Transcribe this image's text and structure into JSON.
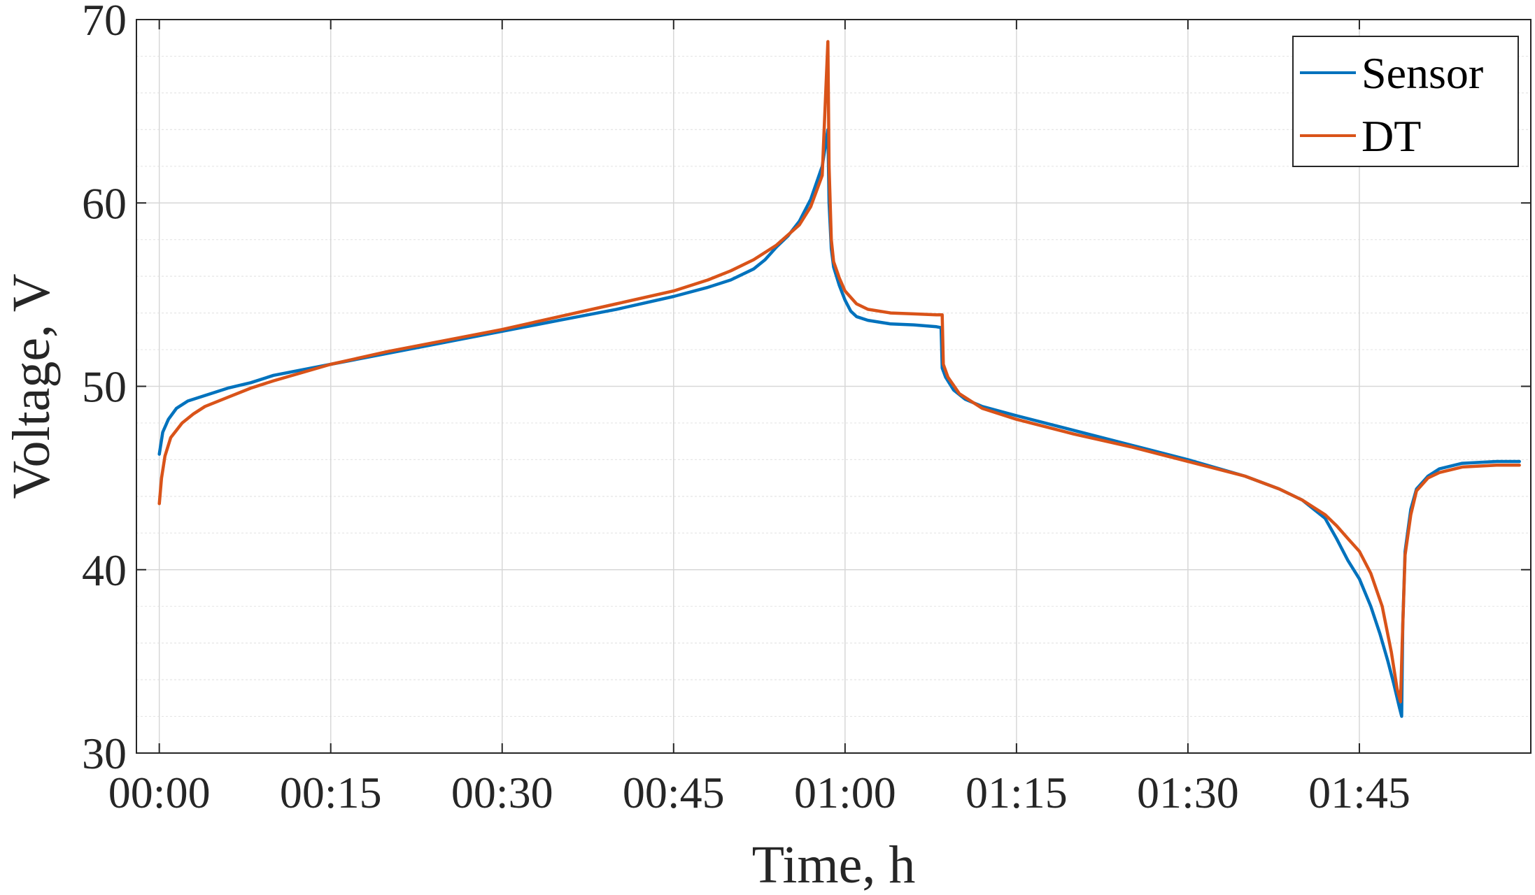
{
  "chart_data": {
    "type": "line",
    "title": "",
    "xlabel": "Time, h",
    "ylabel": "Voltage, V",
    "xlim_minutes": [
      -2,
      120
    ],
    "ylim": [
      30,
      70
    ],
    "x_unit": "minutes",
    "x_ticks": [
      0,
      15,
      30,
      45,
      60,
      75,
      90,
      105
    ],
    "x_tick_labels": [
      "00:00",
      "00:15",
      "00:30",
      "00:45",
      "01:00",
      "01:15",
      "01:30",
      "01:45"
    ],
    "y_ticks": [
      30,
      40,
      50,
      60,
      70
    ],
    "y_tick_labels": [
      "30",
      "40",
      "50",
      "60",
      "70"
    ],
    "y_minor_step": 2,
    "grid": true,
    "minor_grid": true,
    "legend_position": "top-right",
    "series": [
      {
        "name": "Sensor",
        "color": "#0072BD",
        "points": [
          [
            0,
            46.3
          ],
          [
            0.3,
            47.5
          ],
          [
            0.8,
            48.2
          ],
          [
            1.5,
            48.8
          ],
          [
            2.5,
            49.2
          ],
          [
            4,
            49.5
          ],
          [
            6,
            49.9
          ],
          [
            8,
            50.2
          ],
          [
            10,
            50.6
          ],
          [
            15,
            51.2
          ],
          [
            20,
            51.8
          ],
          [
            25,
            52.4
          ],
          [
            30,
            53.0
          ],
          [
            35,
            53.6
          ],
          [
            40,
            54.2
          ],
          [
            45,
            54.9
          ],
          [
            48,
            55.4
          ],
          [
            50,
            55.8
          ],
          [
            52,
            56.4
          ],
          [
            53,
            56.9
          ],
          [
            54,
            57.6
          ],
          [
            55,
            58.2
          ],
          [
            56,
            59.0
          ],
          [
            57,
            60.2
          ],
          [
            58,
            62.0
          ],
          [
            58.5,
            64.0
          ],
          [
            58.6,
            60.0
          ],
          [
            58.8,
            57.5
          ],
          [
            59,
            56.5
          ],
          [
            59.5,
            55.5
          ],
          [
            60,
            54.7
          ],
          [
            60.5,
            54.1
          ],
          [
            61,
            53.8
          ],
          [
            62,
            53.6
          ],
          [
            64,
            53.4
          ],
          [
            66,
            53.35
          ],
          [
            68,
            53.25
          ],
          [
            68.4,
            53.2
          ],
          [
            68.5,
            51.0
          ],
          [
            68.8,
            50.5
          ],
          [
            69.5,
            49.8
          ],
          [
            70.5,
            49.3
          ],
          [
            72,
            48.9
          ],
          [
            75,
            48.4
          ],
          [
            80,
            47.6
          ],
          [
            85,
            46.8
          ],
          [
            90,
            46.0
          ],
          [
            95,
            45.1
          ],
          [
            98,
            44.4
          ],
          [
            100,
            43.8
          ],
          [
            102,
            42.8
          ],
          [
            103,
            41.7
          ],
          [
            104,
            40.5
          ],
          [
            105,
            39.5
          ],
          [
            106,
            38.0
          ],
          [
            106.8,
            36.5
          ],
          [
            107.5,
            35.0
          ],
          [
            108,
            33.8
          ],
          [
            108.5,
            32.5
          ],
          [
            108.7,
            32.0
          ],
          [
            108.8,
            37.0
          ],
          [
            109,
            41.0
          ],
          [
            109.5,
            43.3
          ],
          [
            110,
            44.4
          ],
          [
            111,
            45.1
          ],
          [
            112,
            45.5
          ],
          [
            114,
            45.8
          ],
          [
            117,
            45.9
          ],
          [
            119,
            45.9
          ]
        ]
      },
      {
        "name": "DT",
        "color": "#D95319",
        "points": [
          [
            0,
            43.6
          ],
          [
            0.2,
            45.0
          ],
          [
            0.5,
            46.2
          ],
          [
            1,
            47.2
          ],
          [
            2,
            48.0
          ],
          [
            3,
            48.5
          ],
          [
            4,
            48.9
          ],
          [
            6,
            49.4
          ],
          [
            8,
            49.9
          ],
          [
            10,
            50.3
          ],
          [
            15,
            51.2
          ],
          [
            20,
            51.9
          ],
          [
            25,
            52.5
          ],
          [
            30,
            53.1
          ],
          [
            35,
            53.8
          ],
          [
            40,
            54.5
          ],
          [
            45,
            55.2
          ],
          [
            48,
            55.8
          ],
          [
            50,
            56.3
          ],
          [
            52,
            56.9
          ],
          [
            54,
            57.7
          ],
          [
            56,
            58.8
          ],
          [
            57,
            59.8
          ],
          [
            58,
            61.5
          ],
          [
            58.5,
            68.8
          ],
          [
            58.6,
            62.0
          ],
          [
            58.8,
            58.0
          ],
          [
            59,
            56.8
          ],
          [
            59.5,
            55.9
          ],
          [
            60,
            55.2
          ],
          [
            61,
            54.5
          ],
          [
            62,
            54.2
          ],
          [
            64,
            54.0
          ],
          [
            66,
            53.95
          ],
          [
            68,
            53.9
          ],
          [
            68.5,
            53.9
          ],
          [
            68.6,
            51.2
          ],
          [
            69,
            50.5
          ],
          [
            70,
            49.6
          ],
          [
            71,
            49.2
          ],
          [
            72,
            48.8
          ],
          [
            75,
            48.2
          ],
          [
            80,
            47.4
          ],
          [
            85,
            46.7
          ],
          [
            90,
            45.9
          ],
          [
            95,
            45.1
          ],
          [
            98,
            44.4
          ],
          [
            100,
            43.8
          ],
          [
            102,
            43.0
          ],
          [
            103,
            42.4
          ],
          [
            104,
            41.7
          ],
          [
            105,
            41.0
          ],
          [
            106,
            39.8
          ],
          [
            107,
            38.0
          ],
          [
            107.8,
            35.5
          ],
          [
            108.3,
            33.5
          ],
          [
            108.6,
            32.8
          ],
          [
            108.75,
            36.0
          ],
          [
            109,
            40.8
          ],
          [
            109.5,
            43.0
          ],
          [
            110,
            44.3
          ],
          [
            111,
            45.0
          ],
          [
            112,
            45.3
          ],
          [
            114,
            45.6
          ],
          [
            117,
            45.7
          ],
          [
            119,
            45.7
          ]
        ]
      }
    ]
  }
}
